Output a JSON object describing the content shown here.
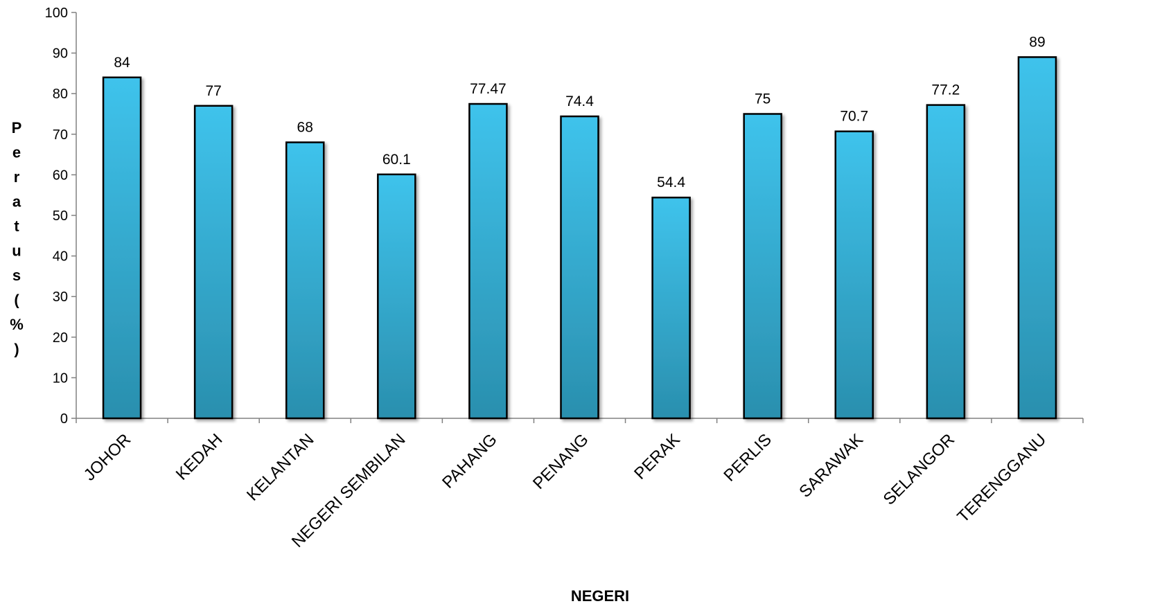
{
  "chart_data": {
    "type": "bar",
    "title": "",
    "xlabel": "NEGERI",
    "ylabel": "Peratus (%)",
    "ylabel_stacked": [
      "P",
      "e",
      "r",
      "a",
      "t",
      "u",
      "s",
      "(",
      "%",
      ")"
    ],
    "ylim": [
      0,
      100
    ],
    "yticks": [
      0,
      10,
      20,
      30,
      40,
      50,
      60,
      70,
      80,
      90,
      100
    ],
    "grid": false,
    "legend": "none",
    "categories": [
      "JOHOR",
      "KEDAH",
      "KELANTAN",
      "NEGERI SEMBILAN",
      "PAHANG",
      "PENANG",
      "PERAK",
      "PERLIS",
      "SARAWAK",
      "SELANGOR",
      "TERENGGANU"
    ],
    "values": [
      84,
      77,
      68,
      60.1,
      77.47,
      74.4,
      54.4,
      75,
      70.7,
      77.2,
      89
    ],
    "value_labels": [
      "84",
      "77",
      "68",
      "60.1",
      "77.47",
      "74.4",
      "54.4",
      "75",
      "70.7",
      "77.2",
      "89"
    ],
    "colors": {
      "bar_top": "#3FC3EC",
      "bar_bottom": "#2A8FAE",
      "bar_edge": "#000000",
      "axis": "#808080"
    }
  }
}
